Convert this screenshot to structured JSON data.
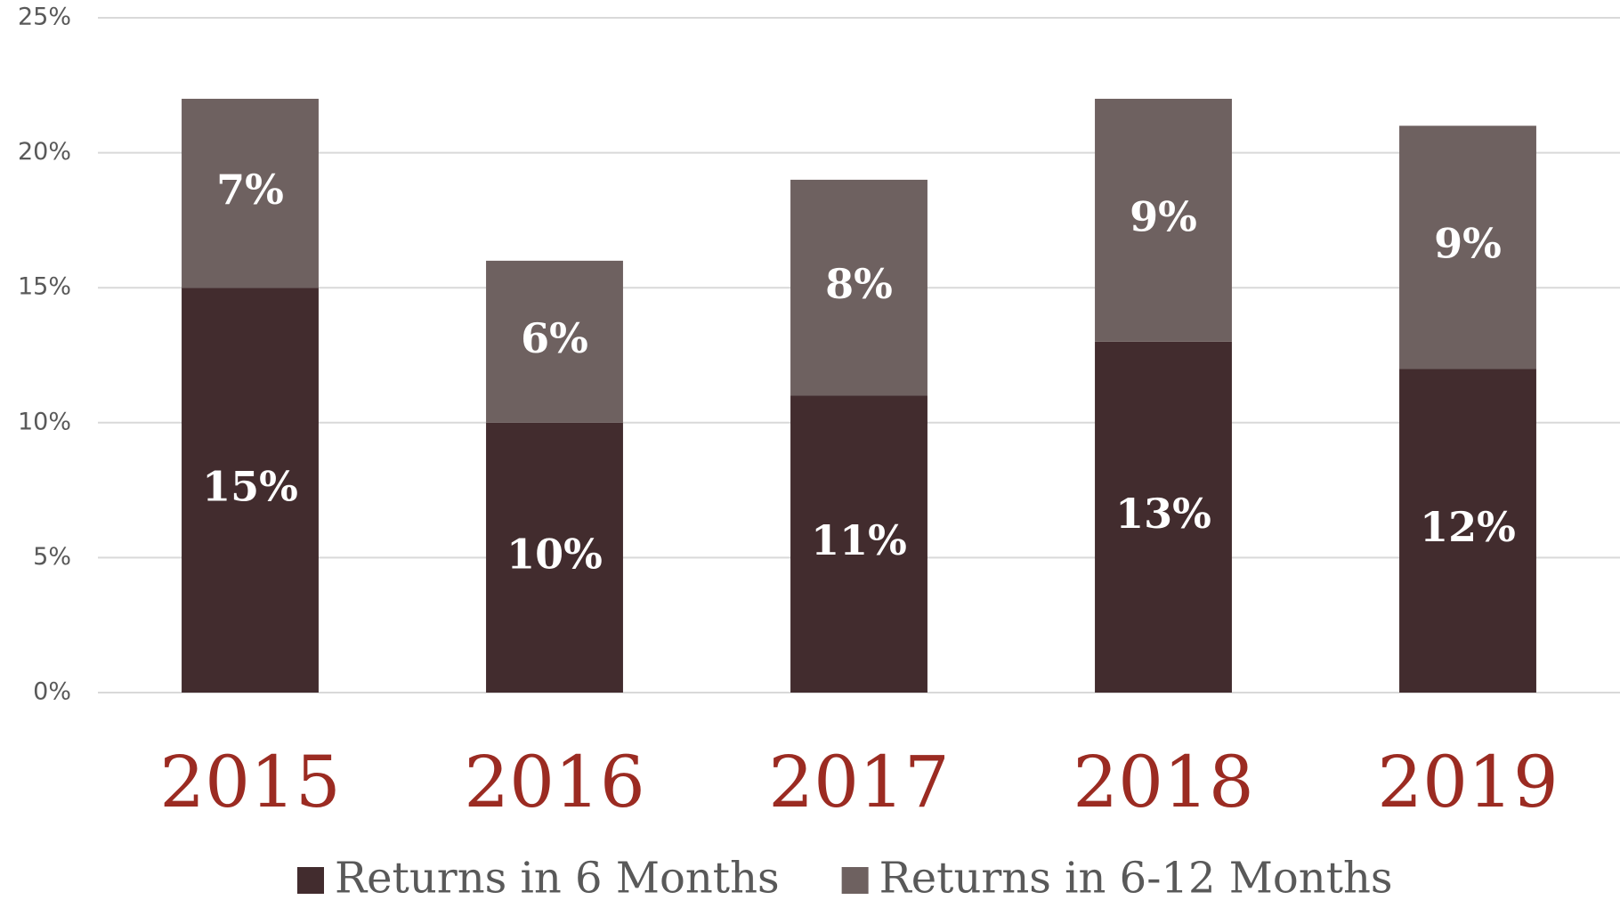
{
  "chart_data": {
    "type": "stacked-bar",
    "categories": [
      "2015",
      "2016",
      "2017",
      "2018",
      "2019"
    ],
    "series": [
      {
        "name": "Returns in 6 Months",
        "color": "#422c2e",
        "values": [
          15,
          10,
          11,
          13,
          12
        ],
        "value_labels": [
          "15%",
          "10%",
          "11%",
          "13%",
          "12%"
        ]
      },
      {
        "name": "Returns in 6-12 Months",
        "color": "#6e6160",
        "values": [
          7,
          6,
          8,
          9,
          9
        ],
        "value_labels": [
          "7%",
          "6%",
          "8%",
          "9%",
          "9%"
        ]
      }
    ],
    "ylim": [
      0,
      25
    ],
    "yticks": [
      {
        "value": 0,
        "label": "0%"
      },
      {
        "value": 5,
        "label": "5%"
      },
      {
        "value": 10,
        "label": "10%"
      },
      {
        "value": 15,
        "label": "15%"
      },
      {
        "value": 20,
        "label": "20%"
      },
      {
        "value": 25,
        "label": "25%"
      }
    ],
    "grid": true
  }
}
